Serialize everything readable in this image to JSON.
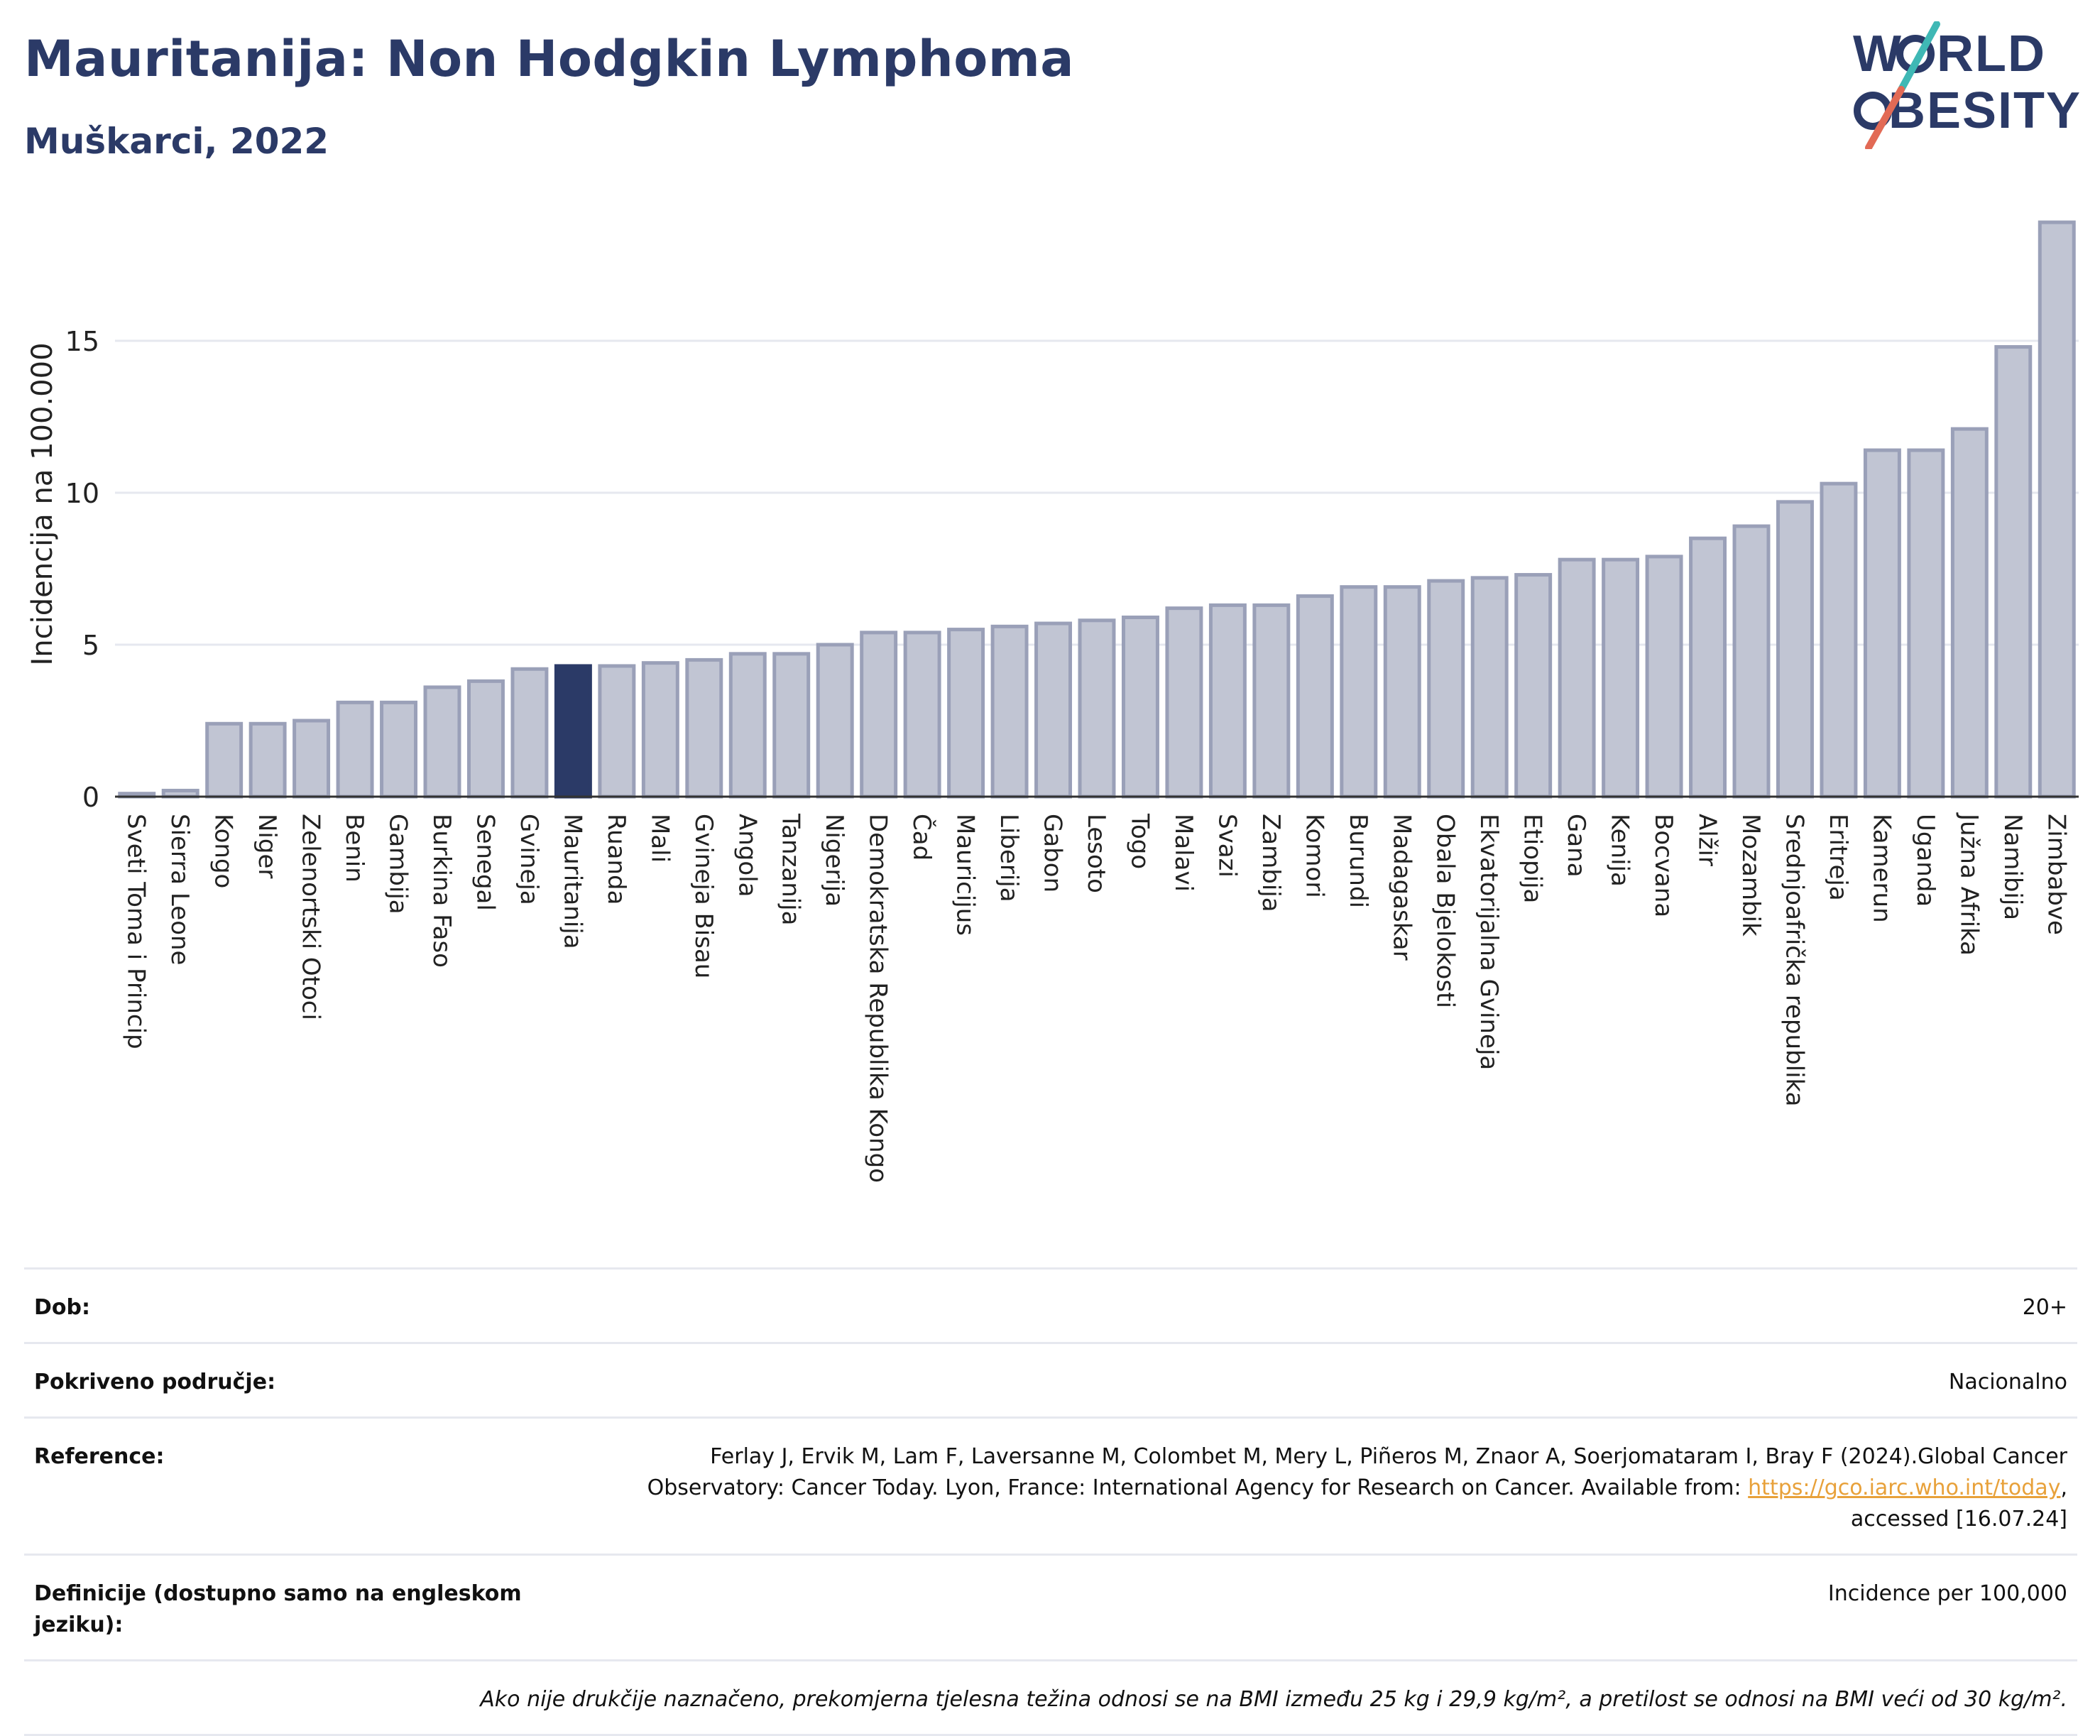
{
  "header": {
    "title": "Mauritanija: Non Hodgkin Lymphoma",
    "subtitle": "Muškarci, 2022"
  },
  "logo": {
    "line1": "WORLD",
    "line2": "OBESITY"
  },
  "colors": {
    "bar": "#c1c5d3",
    "bar_border": "#9aa0b8",
    "highlight": "#2b3a67",
    "grid": "#e6e8ef",
    "title": "#2b3a67",
    "link": "#e8a13a"
  },
  "chart_data": {
    "type": "bar",
    "ylabel": "Incidencija na 100.000",
    "ylim": [
      0,
      19
    ],
    "yticks": [
      0,
      5,
      10,
      15
    ],
    "grid": true,
    "highlight": "Mauritanija",
    "categories": [
      "Sveti Toma i Princip",
      "Sierra Leone",
      "Kongo",
      "Niger",
      "Zelenortski Otoci",
      "Benin",
      "Gambija",
      "Burkina Faso",
      "Senegal",
      "Gvineja",
      "Mauritanija",
      "Ruanda",
      "Mali",
      "Gvineja Bisau",
      "Angola",
      "Tanzanija",
      "Nigerija",
      "Demokratska Republika Kongo",
      "Čad",
      "Mauricijus",
      "Liberija",
      "Gabon",
      "Lesoto",
      "Togo",
      "Malavi",
      "Svazi",
      "Zambija",
      "Komori",
      "Burundi",
      "Madagaskar",
      "Obala Bjelokosti",
      "Ekvatorijalna Gvineja",
      "Etiopija",
      "Gana",
      "Kenija",
      "Bocvana",
      "Alžir",
      "Mozambik",
      "Srednjoafrička republika",
      "Eritreja",
      "Kamerun",
      "Uganda",
      "Južna Afrika",
      "Namibija",
      "Zimbabve"
    ],
    "values": [
      0.1,
      0.2,
      2.4,
      2.4,
      2.5,
      3.1,
      3.1,
      3.6,
      3.8,
      4.2,
      4.3,
      4.3,
      4.4,
      4.5,
      4.7,
      4.7,
      5.0,
      5.4,
      5.4,
      5.5,
      5.6,
      5.7,
      5.8,
      5.9,
      6.2,
      6.3,
      6.3,
      6.6,
      6.9,
      6.9,
      7.1,
      7.2,
      7.3,
      7.8,
      7.8,
      7.9,
      8.5,
      8.9,
      9.7,
      10.3,
      11.4,
      11.4,
      12.1,
      14.8,
      18.9
    ]
  },
  "info": {
    "age_label": "Dob:",
    "age_value": "20+",
    "coverage_label": "Pokriveno područje:",
    "coverage_value": "Nacionalno",
    "reference_label": "Reference:",
    "reference_line1": "Ferlay J, Ervik M, Lam F, Laversanne M, Colombet M, Mery L, Piñeros M, Znaor A, Soerjomataram I, Bray F (2024).Global Cancer",
    "reference_line2": "Observatory: Cancer Today. Lyon, France: International Agency for Research on Cancer. Available from:",
    "reference_link": "https://gco.iarc.who.int/today",
    "reference_line3": "accessed [16.07.24]",
    "definitions_label": "Definicije (dostupno samo na engleskom jeziku):",
    "definitions_value": "Incidence per 100,000",
    "note": "Ako nije drukčije naznačeno, prekomjerna tjelesna težina odnosi se na BMI između 25 kg i 29,9 kg/m², a pretilost se odnosi na BMI veći od 30 kg/m²."
  }
}
